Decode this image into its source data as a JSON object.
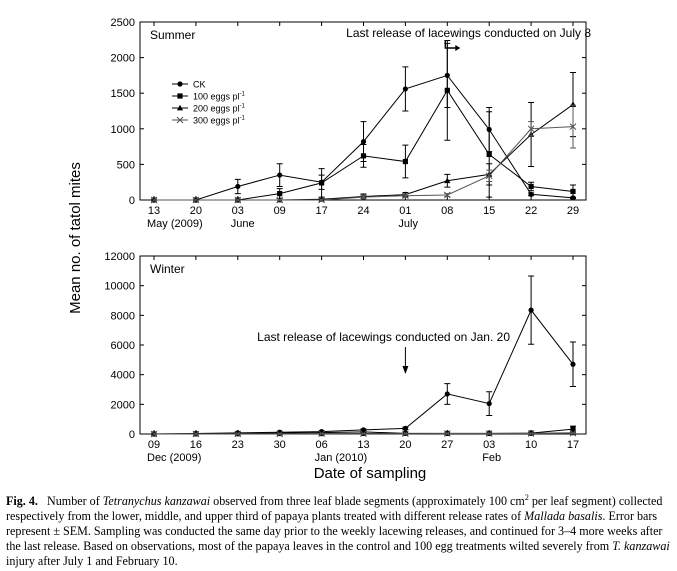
{
  "figure": {
    "ylabel": "Mean no. of tatol mites",
    "xlabel": "Date of sampling",
    "caption": {
      "fig_label": "Fig. 4.",
      "parts": [
        {
          "t": "Number of "
        },
        {
          "t": "Tetranychus kanzawai",
          "i": true
        },
        {
          "t": " observed from three leaf blade segments (approximately 100 cm"
        },
        {
          "t": "2",
          "sup": true
        },
        {
          "t": " per leaf segment) collected respectively from the lower, middle, and upper third of papaya plants treated with different release rates of "
        },
        {
          "t": "Mallada basalis",
          "i": true
        },
        {
          "t": ". Error bars represent ± SEM. Sampling was conducted the same day prior to the weekly lacewing releases, and continued for 3–4 more weeks after the last release. Based on observations, most of the papaya leaves in the control and 100 egg treatments wilted severely from "
        },
        {
          "t": "T. kanzawai",
          "i": true
        },
        {
          "t": " injury after July 1 and February 10."
        }
      ]
    }
  },
  "chart_data": [
    {
      "type": "line",
      "panel_label": "Summer",
      "ylim": [
        0,
        2500
      ],
      "yticks": [
        0,
        500,
        1000,
        1500,
        2000,
        2500
      ],
      "ytick_labels": [
        "0",
        "500",
        "1000",
        "1500",
        "2000",
        "2500"
      ],
      "x_tick_labels": [
        "13",
        "20",
        "03",
        "09",
        "17",
        "24",
        "01",
        "08",
        "15",
        "22",
        "29"
      ],
      "month_labels": [
        {
          "at_index": 0,
          "text": "May (2009)"
        },
        {
          "at_index": 2,
          "text": "June"
        },
        {
          "at_index": 6,
          "text": "July"
        }
      ],
      "legend": {
        "placement": "upper-left",
        "entries": [
          {
            "name": "CK",
            "marker": "circle"
          },
          {
            "name": "100 eggs pl",
            "sup": "-1",
            "marker": "square"
          },
          {
            "name": "200 eggs pl",
            "sup": "-1",
            "marker": "triangle"
          },
          {
            "name": "300 eggs pl",
            "sup": "-1",
            "marker": "x"
          }
        ]
      },
      "annotation": {
        "text": "Last release of lacewings conducted on July 8",
        "arrow_index": 7,
        "arrow_style": "bent-left"
      },
      "series": [
        {
          "name": "CK",
          "marker": "circle",
          "values": [
            0,
            0,
            190,
            350,
            250,
            820,
            1560,
            1750,
            990,
            80,
            30
          ],
          "errors": [
            0,
            0,
            100,
            160,
            100,
            280,
            310,
            450,
            310,
            20,
            10
          ]
        },
        {
          "name": "100 eggs pl-1",
          "marker": "square",
          "values": [
            0,
            0,
            0,
            90,
            240,
            620,
            540,
            1540,
            640,
            190,
            120
          ],
          "errors": [
            0,
            0,
            0,
            70,
            200,
            160,
            230,
            700,
            600,
            60,
            90
          ]
        },
        {
          "name": "200 eggs pl-1",
          "marker": "triangle",
          "values": [
            0,
            0,
            0,
            0,
            10,
            50,
            75,
            270,
            360,
            920,
            1340
          ],
          "errors": [
            0,
            0,
            0,
            0,
            10,
            35,
            30,
            90,
            150,
            450,
            450
          ]
        },
        {
          "name": "300 eggs pl-1",
          "marker": "x",
          "values": [
            0,
            0,
            0,
            0,
            0,
            40,
            60,
            70,
            340,
            1000,
            1030
          ],
          "errors": [
            0,
            0,
            0,
            0,
            0,
            25,
            25,
            20,
            80,
            100,
            300
          ]
        }
      ]
    },
    {
      "type": "line",
      "panel_label": "Winter",
      "ylim": [
        0,
        12000
      ],
      "yticks": [
        0,
        2000,
        4000,
        6000,
        8000,
        10000,
        12000
      ],
      "ytick_labels": [
        "0",
        "2000",
        "4000",
        "6000",
        "8000",
        "10000",
        "12000"
      ],
      "x_tick_labels": [
        "09",
        "16",
        "23",
        "30",
        "06",
        "13",
        "20",
        "27",
        "03",
        "10",
        "17"
      ],
      "month_labels": [
        {
          "at_index": 0,
          "text": "Dec (2009)"
        },
        {
          "at_index": 4,
          "text": "Jan (2010)"
        },
        {
          "at_index": 8,
          "text": "Feb"
        }
      ],
      "annotation": {
        "text": "Last release of lacewings conducted on Jan. 20",
        "arrow_index": 6,
        "arrow_style": "down"
      },
      "series": [
        {
          "name": "CK",
          "marker": "circle",
          "values": [
            10,
            30,
            80,
            120,
            160,
            280,
            380,
            2700,
            2050,
            8350,
            4700
          ],
          "errors": [
            0,
            10,
            20,
            30,
            40,
            60,
            80,
            700,
            800,
            2300,
            1500
          ]
        },
        {
          "name": "100 eggs pl-1",
          "marker": "square",
          "values": [
            0,
            10,
            30,
            60,
            90,
            140,
            40,
            40,
            40,
            60,
            330
          ],
          "errors": [
            0,
            5,
            10,
            20,
            25,
            30,
            15,
            15,
            15,
            20,
            200
          ]
        },
        {
          "name": "200 eggs pl-1",
          "marker": "triangle",
          "values": [
            0,
            0,
            10,
            20,
            20,
            30,
            30,
            30,
            30,
            40,
            80
          ],
          "errors": [
            0,
            0,
            5,
            5,
            5,
            10,
            10,
            10,
            10,
            10,
            40
          ]
        },
        {
          "name": "300 eggs pl-1",
          "marker": "x",
          "values": [
            0,
            0,
            10,
            10,
            20,
            20,
            20,
            30,
            30,
            30,
            60
          ],
          "errors": [
            0,
            0,
            5,
            5,
            5,
            5,
            5,
            10,
            10,
            10,
            30
          ]
        }
      ]
    }
  ]
}
